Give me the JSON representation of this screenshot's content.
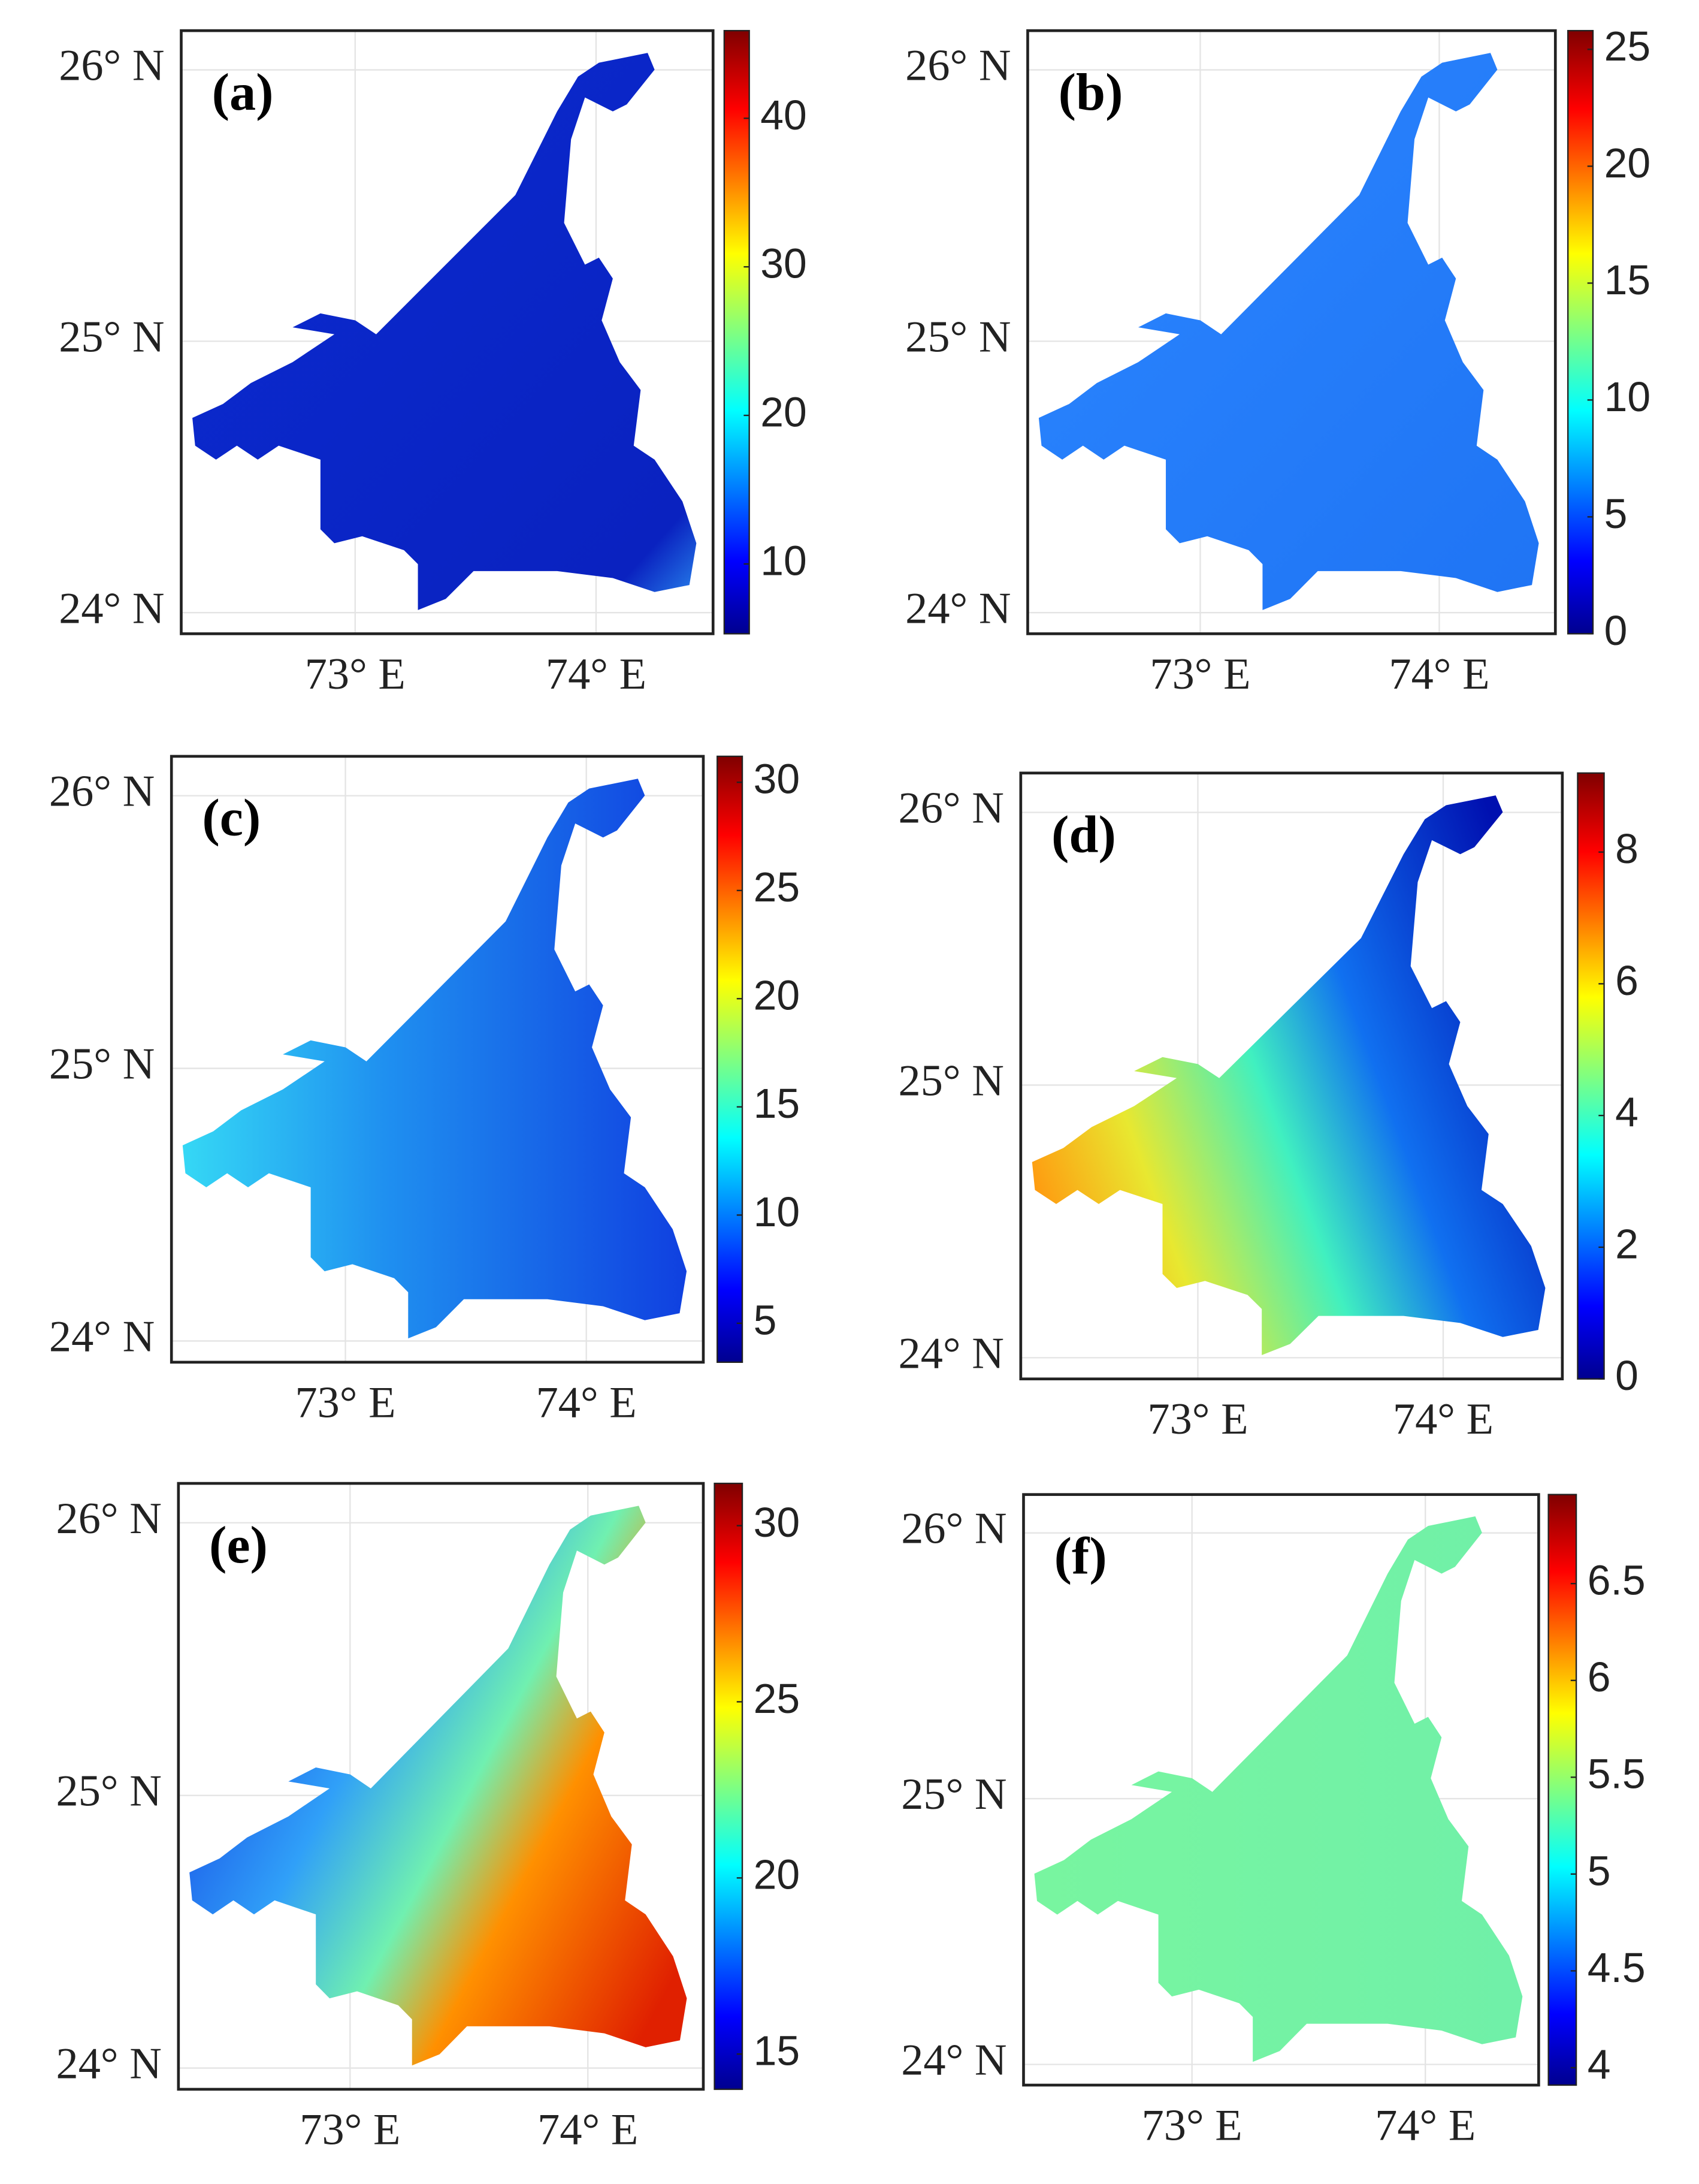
{
  "panels": [
    {
      "label": "(a)",
      "lat_labels": [
        "26° N",
        "25° N",
        "24° N"
      ],
      "lon_labels": [
        "73° E",
        "74° E"
      ],
      "colorbar": {
        "lim": [
          5.3,
          45.9
        ],
        "ticks": [
          10,
          20,
          30,
          40
        ]
      }
    },
    {
      "label": "(b)",
      "lat_labels": [
        "26° N",
        "25° N",
        "24° N"
      ],
      "lon_labels": [
        "73° E",
        "74° E"
      ],
      "colorbar": {
        "lim": [
          0,
          25.8
        ],
        "ticks": [
          0,
          5,
          10,
          15,
          20,
          25
        ]
      }
    },
    {
      "label": "(c)",
      "lat_labels": [
        "26° N",
        "25° N",
        "24° N"
      ],
      "lon_labels": [
        "73° E",
        "74° E"
      ],
      "colorbar": {
        "lim": [
          3.2,
          31.2
        ],
        "ticks": [
          5,
          10,
          15,
          20,
          25,
          30
        ]
      }
    },
    {
      "label": "(d)",
      "lat_labels": [
        "26° N",
        "25° N",
        "24° N"
      ],
      "lon_labels": [
        "73° E",
        "74° E"
      ],
      "colorbar": {
        "lim": [
          0,
          9.2
        ],
        "ticks": [
          0,
          2,
          4,
          6,
          8
        ]
      }
    },
    {
      "label": "(e)",
      "lat_labels": [
        "26° N",
        "25° N",
        "24° N"
      ],
      "lon_labels": [
        "73° E",
        "74° E"
      ],
      "colorbar": {
        "lim": [
          14,
          31.2
        ],
        "ticks": [
          15,
          20,
          25,
          30
        ]
      }
    },
    {
      "label": "(f)",
      "lat_labels": [
        "26° N",
        "25° N",
        "24° N"
      ],
      "lon_labels": [
        "73° E",
        "74° E"
      ],
      "colorbar": {
        "lim": [
          3.91,
          6.96
        ],
        "ticks": [
          4,
          4.5,
          5,
          5.5,
          6,
          6.5
        ]
      }
    }
  ]
}
